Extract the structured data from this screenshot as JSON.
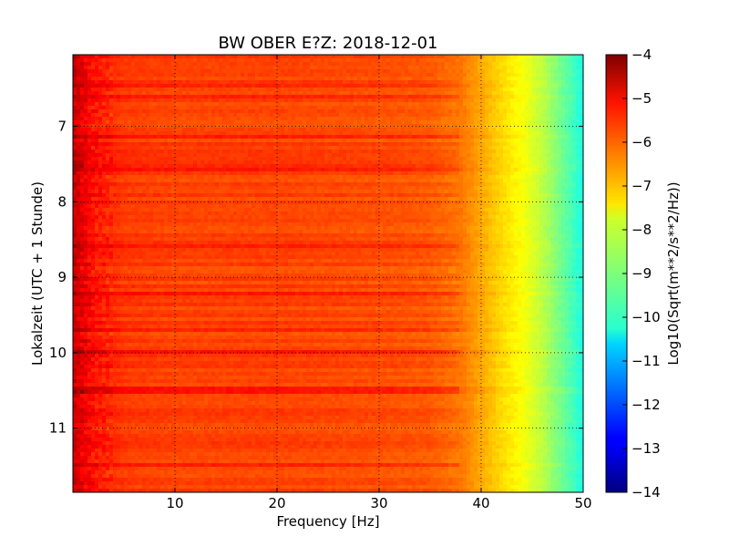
{
  "chart_data": {
    "type": "heatmap",
    "title": "BW OBER E?Z: 2018-12-01",
    "xlabel": "Frequency [Hz]",
    "ylabel": "Lokalzeit (UTC + 1 Stunde)",
    "xlim": [
      0,
      50
    ],
    "ylim": [
      11.85,
      6.05
    ],
    "x_ticks": [
      10,
      20,
      30,
      40,
      50
    ],
    "x_tick_labels": [
      "10",
      "20",
      "30",
      "40",
      "50"
    ],
    "y_ticks": [
      7,
      8,
      9,
      10,
      11
    ],
    "y_tick_labels": [
      "7",
      "8",
      "9",
      "10",
      "11"
    ],
    "y_inverted": true,
    "grid": true,
    "colormap": "jet",
    "colorbar": {
      "label": "Log10(Sqrt(m**2/s**2/Hz))",
      "range": [
        -14,
        -4
      ],
      "ticks": [
        -4,
        -5,
        -6,
        -7,
        -8,
        -9,
        -10,
        -11,
        -12,
        -13,
        -14
      ],
      "tick_labels": [
        "−4",
        "−5",
        "−6",
        "−7",
        "−8",
        "−9",
        "−10",
        "−11",
        "−12",
        "−13",
        "−14"
      ]
    },
    "spectral_profile": {
      "frequency_hz": [
        0,
        2,
        5,
        10,
        20,
        30,
        35,
        38,
        40,
        42,
        44,
        46,
        48,
        50
      ],
      "level": [
        -4.7,
        -5.4,
        -5.8,
        -5.9,
        -5.9,
        -6.0,
        -6.1,
        -6.4,
        -6.9,
        -7.4,
        -7.8,
        -8.4,
        -9.2,
        -10.0
      ]
    },
    "notable_rows_hours": [
      6.45,
      6.6,
      7.15,
      7.55,
      8.6,
      9.2,
      9.7,
      10.0,
      10.5,
      11.5
    ]
  }
}
